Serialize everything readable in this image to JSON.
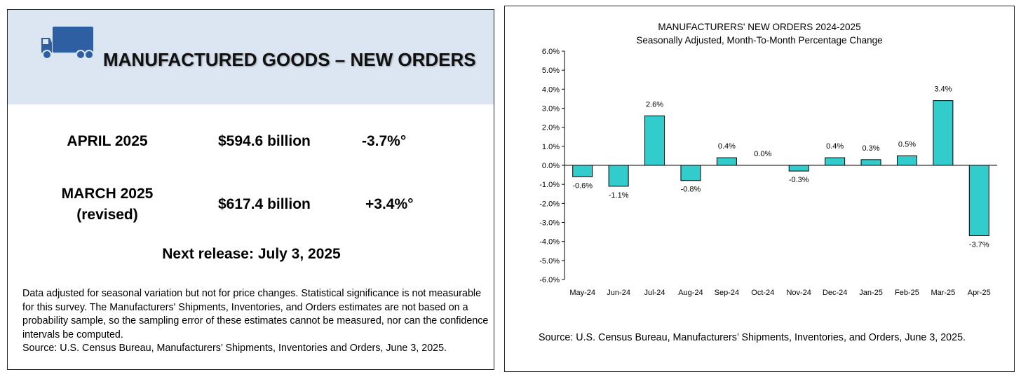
{
  "summary": {
    "title": "MANUFACTURED GOODS – NEW ORDERS",
    "rows": [
      {
        "label_line1": "APRIL 2025",
        "label_line2": "",
        "value": "$594.6 billion",
        "change": "-3.7%°"
      },
      {
        "label_line1": "MARCH 2025",
        "label_line2": "(revised)",
        "value": "$617.4 billion",
        "change": "+3.4%°"
      }
    ],
    "next_release": "Next release: July 3, 2025",
    "footnote_text": "Data adjusted for seasonal variation but not for price changes. Statistical significance is not measurable for this survey.  The Manufacturers' Shipments, Inventories, and Orders estimates are not based on a probability sample, so the sampling error of these estimates cannot be measured, nor can the confidence intervals be computed.",
    "footnote_source": "Source: U.S. Census Bureau, Manufacturers’ Shipments, Inventories and Orders, June 3, 2025."
  },
  "colors": {
    "header_bg": "#dce6f2",
    "truck": "#2e5fa3",
    "bar": "#33cccc"
  },
  "chart_data": {
    "type": "bar",
    "title": "MANUFACTURERS' NEW ORDERS 2024-2025",
    "subtitle": "Seasonally Adjusted,  Month-To-Month Percentage Change",
    "categories": [
      "May-24",
      "Jun-24",
      "Jul-24",
      "Aug-24",
      "Sep-24",
      "Oct-24",
      "Nov-24",
      "Dec-24",
      "Jan-25",
      "Feb-25",
      "Mar-25",
      "Apr-25"
    ],
    "values": [
      -0.6,
      -1.1,
      2.6,
      -0.8,
      0.4,
      0.0,
      -0.3,
      0.4,
      0.3,
      0.5,
      3.4,
      -3.7
    ],
    "data_labels": [
      "-0.6%",
      "-1.1%",
      "2.6%",
      "-0.8%",
      "0.4%",
      "0.0%",
      "-0.3%",
      "0.4%",
      "0.3%",
      "0.5%",
      "3.4%",
      "-3.7%"
    ],
    "y_ticks": [
      6,
      5,
      4,
      3,
      2,
      1,
      0,
      -1,
      -2,
      -3,
      -4,
      -5,
      -6
    ],
    "y_tick_labels": [
      "6.0%",
      "5.0%",
      "4.0%",
      "3.0%",
      "2.0%",
      "1.0%",
      "0.0%",
      "-1.0%",
      "-2.0%",
      "-3.0%",
      "-4.0%",
      "-5.0%",
      "-6.0%"
    ],
    "ylim": [
      -6,
      6
    ],
    "xlabel": "",
    "ylabel": "",
    "grid": false,
    "source": "Source: U.S. Census Bureau, Manufacturers’ Shipments, Inventories, and Orders, June 3, 2025."
  }
}
